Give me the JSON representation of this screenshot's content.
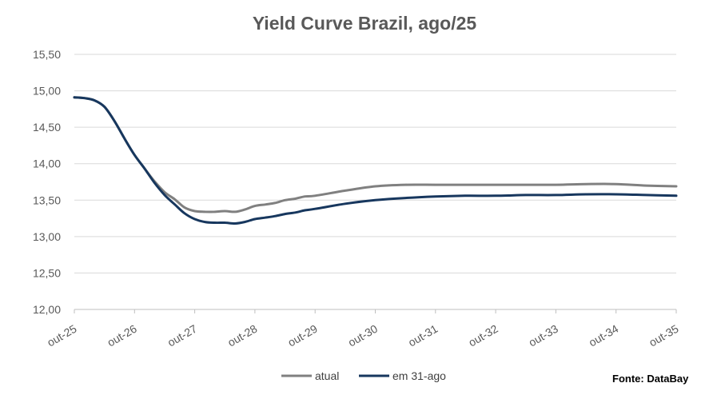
{
  "chart_data": {
    "type": "line",
    "title": "Yield Curve Brazil, ago/25",
    "xlabel": "",
    "ylabel": "",
    "x_ticks": [
      "out-25",
      "out-26",
      "out-27",
      "out-28",
      "out-29",
      "out-30",
      "out-31",
      "out-32",
      "out-33",
      "out-34",
      "out-35"
    ],
    "y_ticks": [
      "12,00",
      "12,50",
      "13,00",
      "13,50",
      "14,00",
      "14,50",
      "15,00",
      "15,50"
    ],
    "ylim": [
      12.0,
      15.5
    ],
    "x_unit": "years since out-25",
    "grid": "horizontal",
    "legend_position": "bottom",
    "source": "Fonte: DataBay",
    "series": [
      {
        "name": "atual",
        "color": "#808080",
        "x": [
          0,
          0.17,
          0.33,
          0.5,
          0.67,
          0.83,
          1.0,
          1.17,
          1.33,
          1.5,
          1.67,
          1.83,
          2.0,
          2.17,
          2.33,
          2.5,
          2.67,
          2.83,
          3.0,
          3.17,
          3.33,
          3.5,
          3.67,
          3.83,
          4.0,
          4.5,
          5.0,
          5.5,
          6.0,
          6.5,
          7.0,
          7.5,
          8.0,
          8.5,
          9.0,
          9.5,
          10.0
        ],
        "values": [
          14.91,
          14.9,
          14.87,
          14.78,
          14.58,
          14.35,
          14.12,
          13.93,
          13.76,
          13.61,
          13.51,
          13.4,
          13.35,
          13.34,
          13.34,
          13.35,
          13.34,
          13.37,
          13.42,
          13.44,
          13.46,
          13.5,
          13.52,
          13.55,
          13.56,
          13.63,
          13.69,
          13.71,
          13.71,
          13.71,
          13.71,
          13.71,
          13.71,
          13.72,
          13.72,
          13.7,
          13.69
        ]
      },
      {
        "name": "em 31-ago",
        "color": "#17375e",
        "x": [
          0,
          0.17,
          0.33,
          0.5,
          0.67,
          0.83,
          1.0,
          1.17,
          1.33,
          1.5,
          1.67,
          1.83,
          2.0,
          2.17,
          2.33,
          2.5,
          2.67,
          2.83,
          3.0,
          3.17,
          3.33,
          3.5,
          3.67,
          3.83,
          4.0,
          4.5,
          5.0,
          5.5,
          6.0,
          6.5,
          7.0,
          7.5,
          8.0,
          8.5,
          9.0,
          9.5,
          10.0
        ],
        "values": [
          14.91,
          14.9,
          14.87,
          14.78,
          14.58,
          14.35,
          14.12,
          13.93,
          13.74,
          13.57,
          13.44,
          13.32,
          13.24,
          13.2,
          13.19,
          13.19,
          13.18,
          13.2,
          13.24,
          13.26,
          13.28,
          13.31,
          13.33,
          13.36,
          13.38,
          13.45,
          13.5,
          13.53,
          13.55,
          13.56,
          13.56,
          13.57,
          13.57,
          13.58,
          13.58,
          13.57,
          13.56
        ]
      }
    ]
  }
}
